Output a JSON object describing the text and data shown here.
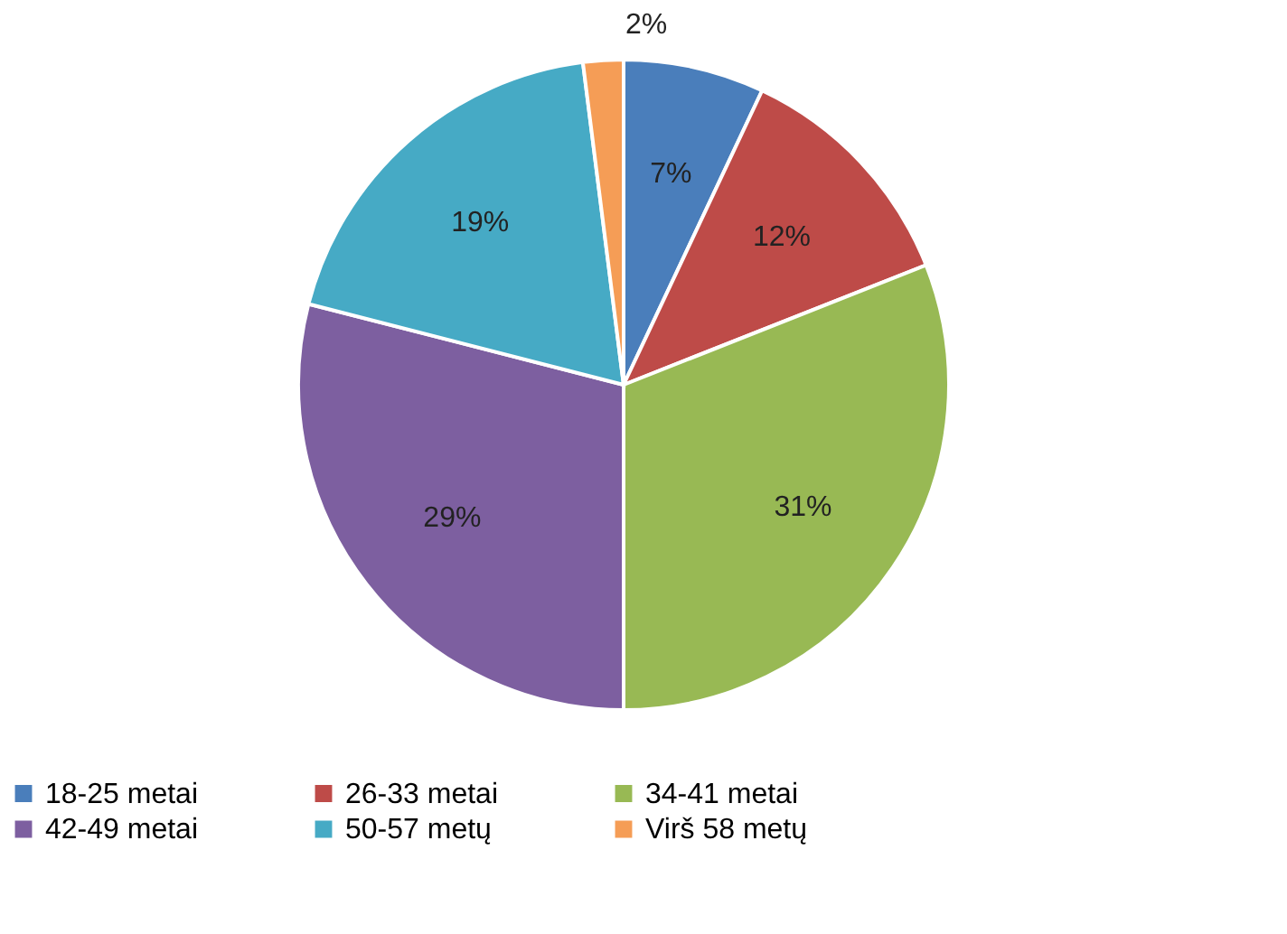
{
  "chart_data": {
    "type": "pie",
    "categories": [
      "18-25 metai",
      "26-33 metai",
      "34-41 metai",
      "42-49 metai",
      "50-57 metų",
      "Virš 58 metų"
    ],
    "values": [
      7,
      12,
      31,
      29,
      19,
      2
    ],
    "colors": [
      "#4a7ebb",
      "#be4b48",
      "#98b954",
      "#7d5fa0",
      "#46aac5",
      "#f59d56"
    ],
    "value_labels": [
      "7%",
      "12%",
      "31%",
      "29%",
      "19%",
      "2%"
    ],
    "legend": "bottom"
  }
}
